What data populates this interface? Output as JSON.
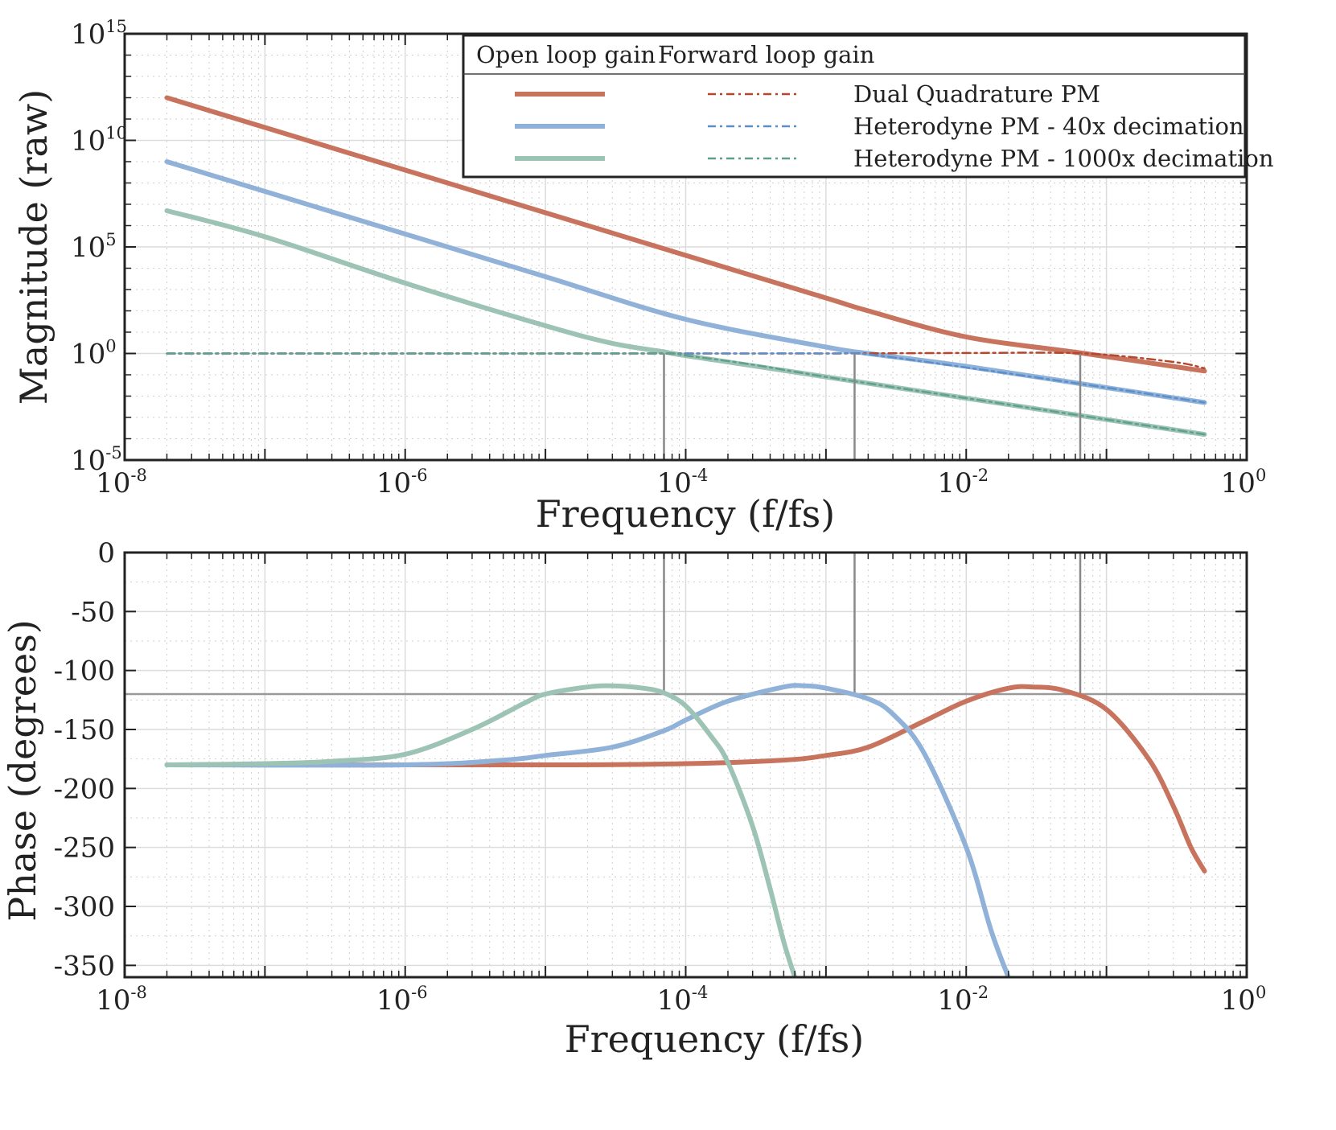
{
  "chart_data": [
    {
      "type": "line",
      "title": "",
      "xlabel": "Frequency (f/fs)",
      "ylabel": "Magnitude (raw)",
      "xscale": "log",
      "yscale": "log",
      "xlim": [
        1e-08,
        1
      ],
      "ylim": [
        1e-05,
        1000000000000000.0
      ],
      "x_ticks": [
        {
          "base": "10",
          "exp": "-8",
          "value": 1e-08
        },
        {
          "base": "10",
          "exp": "-6",
          "value": 1e-06
        },
        {
          "base": "10",
          "exp": "-4",
          "value": 0.0001
        },
        {
          "base": "10",
          "exp": "-2",
          "value": 0.01
        },
        {
          "base": "10",
          "exp": "0",
          "value": 1
        }
      ],
      "y_ticks": [
        {
          "base": "10",
          "exp": "15",
          "value": 1000000000000000.0
        },
        {
          "base": "10",
          "exp": "10",
          "value": 10000000000.0
        },
        {
          "base": "10",
          "exp": "5",
          "value": 100000.0
        },
        {
          "base": "10",
          "exp": "0",
          "value": 1
        },
        {
          "base": "10",
          "exp": "-5",
          "value": 1e-05
        }
      ],
      "grid": true,
      "legend": {
        "placement": "top-right",
        "col_headers": [
          "Open loop gain",
          "Forward loop gain"
        ]
      },
      "series": [
        {
          "name": "Dual Quadrature PM",
          "kind": "open",
          "color": "#c8735e",
          "x": [
            2e-08,
            1e-07,
            1e-06,
            1e-05,
            0.0001,
            0.001,
            0.002,
            0.01,
            0.07,
            0.5
          ],
          "y": [
            1000000000000.0,
            40000000000.0,
            400000000.0,
            4000000.0,
            40000.0,
            400.0,
            100.0,
            6,
            1,
            0.15
          ]
        },
        {
          "name": "Dual Quadrature PM",
          "kind": "forward",
          "color": "#b5472f",
          "x": [
            2e-08,
            0.0001,
            0.001,
            0.01,
            0.07,
            0.3,
            0.5
          ],
          "y": [
            1,
            1,
            1,
            1.05,
            1,
            0.4,
            0.2
          ]
        },
        {
          "name": "Heterodyne PM - 40x decimation",
          "kind": "open",
          "color": "#91b2d8",
          "x": [
            2e-08,
            1e-07,
            1e-06,
            1e-05,
            0.0001,
            0.001,
            0.002,
            0.01,
            0.1,
            0.5
          ],
          "y": [
            1000000000.0,
            40000000.0,
            400000.0,
            4000.0,
            40,
            2,
            1,
            0.25,
            0.025,
            0.005
          ]
        },
        {
          "name": "Heterodyne PM - 40x decimation",
          "kind": "forward",
          "color": "#5a8fc9",
          "x": [
            2e-08,
            0.0001,
            0.001,
            0.002,
            0.01,
            0.1,
            0.5
          ],
          "y": [
            1,
            1,
            1,
            0.9,
            0.22,
            0.025,
            0.005
          ]
        },
        {
          "name": "Heterodyne PM - 1000x decimation",
          "kind": "open",
          "color": "#9cc3b4",
          "x": [
            2e-08,
            1e-07,
            1e-06,
            1e-05,
            3e-05,
            7e-05,
            0.0001,
            0.001,
            0.01,
            0.1,
            0.5
          ],
          "y": [
            5000000.0,
            300000.0,
            2000.0,
            20,
            3,
            1.2,
            0.8,
            0.08,
            0.008,
            0.0008,
            0.00016
          ]
        },
        {
          "name": "Heterodyne PM - 1000x decimation",
          "kind": "forward",
          "color": "#5fa08c",
          "x": [
            2e-08,
            1e-05,
            7e-05,
            0.0001,
            0.0003,
            0.001,
            0.01,
            0.1,
            0.5
          ],
          "y": [
            1,
            1,
            1,
            0.8,
            0.3,
            0.08,
            0.008,
            0.0008,
            0.00016
          ]
        }
      ],
      "markers_x": [
        7e-05,
        0.0016,
        0.065
      ]
    },
    {
      "type": "line",
      "title": "",
      "xlabel": "Frequency (f/fs)",
      "ylabel": "Phase (degrees)",
      "xscale": "log",
      "xlim": [
        1e-08,
        1
      ],
      "ylim": [
        -360,
        0
      ],
      "x_ticks": [
        {
          "base": "10",
          "exp": "-8",
          "value": 1e-08
        },
        {
          "base": "10",
          "exp": "-6",
          "value": 1e-06
        },
        {
          "base": "10",
          "exp": "-4",
          "value": 0.0001
        },
        {
          "base": "10",
          "exp": "-2",
          "value": 0.01
        },
        {
          "base": "10",
          "exp": "0",
          "value": 1
        }
      ],
      "y_ticks": [
        "0",
        "-50",
        "-100",
        "-150",
        "-200",
        "-250",
        "-300",
        "-350"
      ],
      "grid": true,
      "series": [
        {
          "name": "Dual Quadrature PM",
          "color": "#c8735e",
          "x": [
            2e-08,
            1e-05,
            0.0001,
            0.0005,
            0.001,
            0.002,
            0.005,
            0.01,
            0.02,
            0.03,
            0.05,
            0.1,
            0.2,
            0.3,
            0.4,
            0.5
          ],
          "y": [
            -180,
            -180,
            -179,
            -176,
            -172,
            -165,
            -143,
            -126,
            -115,
            -114,
            -117,
            -133,
            -175,
            -215,
            -250,
            -270
          ]
        },
        {
          "name": "Heterodyne PM - 40x decimation",
          "color": "#91b2d8",
          "x": [
            2e-08,
            1e-06,
            5e-06,
            1e-05,
            3e-05,
            7e-05,
            0.0001,
            0.0002,
            0.0005,
            0.0007,
            0.001,
            0.002,
            0.003,
            0.005,
            0.01,
            0.015,
            0.02
          ],
          "y": [
            -180,
            -180,
            -176,
            -172,
            -165,
            -151,
            -142,
            -126,
            -114,
            -113,
            -115,
            -124,
            -137,
            -170,
            -250,
            -320,
            -360
          ]
        },
        {
          "name": "Heterodyne PM - 1000x decimation",
          "color": "#9cc3b4",
          "x": [
            2e-08,
            1e-07,
            3e-07,
            1e-06,
            3e-06,
            7e-06,
            1e-05,
            2e-05,
            3e-05,
            5e-05,
            7e-05,
            0.0001,
            0.00015,
            0.0002,
            0.0003,
            0.0004,
            0.0005,
            0.0006
          ],
          "y": [
            -180,
            -179,
            -177,
            -171,
            -150,
            -128,
            -120,
            -114,
            -113,
            -115,
            -119,
            -130,
            -155,
            -178,
            -232,
            -285,
            -330,
            -360
          ]
        }
      ],
      "ref_line_y": -120,
      "markers_x": [
        7e-05,
        0.0016,
        0.065
      ]
    }
  ]
}
